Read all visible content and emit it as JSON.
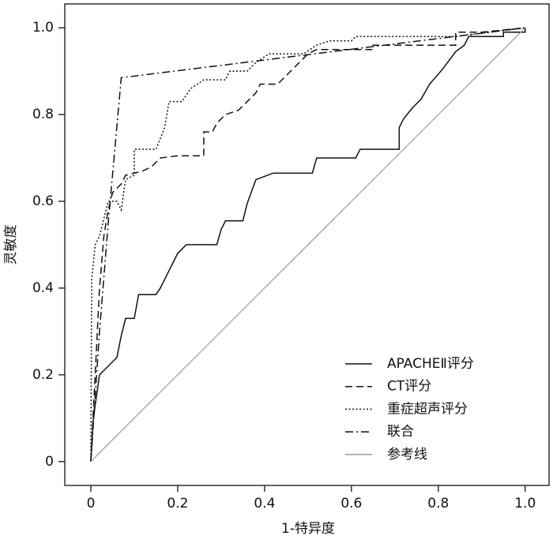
{
  "chart_data": {
    "type": "line",
    "xlabel": "1-特异度",
    "ylabel": "灵敏度",
    "xlim": [
      -0.06,
      1.055
    ],
    "ylim": [
      -0.055,
      1.055
    ],
    "xticks": [
      0,
      0.2,
      0.4,
      0.6,
      0.8,
      {
        "value": 1,
        "label": "1.0"
      }
    ],
    "yticks": [
      0,
      0.2,
      0.4,
      0.6,
      0.8,
      {
        "value": 1,
        "label": "1.0"
      }
    ],
    "legend": "lower right",
    "series": [
      {
        "name": "APACHEⅡ评分",
        "color": "#111111",
        "dash": "solid",
        "x": [
          0,
          0.005,
          0.01,
          0.02,
          0.04,
          0.06,
          0.07,
          0.08,
          0.1,
          0.11,
          0.15,
          0.16,
          0.17,
          0.18,
          0.19,
          0.2,
          0.22,
          0.29,
          0.3,
          0.31,
          0.35,
          0.36,
          0.38,
          0.42,
          0.51,
          0.52,
          0.61,
          0.62,
          0.71,
          0.71,
          0.72,
          0.74,
          0.76,
          0.78,
          0.81,
          0.84,
          0.86,
          0.87,
          0.95,
          0.95,
          1,
          1
        ],
        "values": [
          0,
          0.09,
          0.13,
          0.2,
          0.22,
          0.24,
          0.29,
          0.33,
          0.33,
          0.385,
          0.385,
          0.4,
          0.42,
          0.44,
          0.46,
          0.48,
          0.5,
          0.5,
          0.535,
          0.555,
          0.555,
          0.595,
          0.65,
          0.665,
          0.665,
          0.7,
          0.7,
          0.72,
          0.72,
          0.77,
          0.79,
          0.815,
          0.835,
          0.87,
          0.905,
          0.945,
          0.96,
          0.98,
          0.98,
          0.99,
          0.99,
          1
        ]
      },
      {
        "name": "CT评分",
        "color": "#111111",
        "dash": "dashed",
        "x": [
          0,
          0.005,
          0.01,
          0.02,
          0.03,
          0.04,
          0.05,
          0.07,
          0.08,
          0.12,
          0.14,
          0.16,
          0.2,
          0.26,
          0.26,
          0.28,
          0.29,
          0.31,
          0.34,
          0.36,
          0.38,
          0.39,
          0.43,
          0.45,
          0.48,
          0.5,
          0.52,
          0.65,
          0.65,
          0.84,
          0.84,
          0.9,
          1
        ],
        "values": [
          0,
          0.1,
          0.2,
          0.4,
          0.52,
          0.58,
          0.62,
          0.64,
          0.66,
          0.67,
          0.68,
          0.7,
          0.705,
          0.705,
          0.76,
          0.76,
          0.78,
          0.8,
          0.81,
          0.83,
          0.85,
          0.87,
          0.87,
          0.89,
          0.92,
          0.94,
          0.95,
          0.95,
          0.96,
          0.96,
          0.99,
          0.99,
          1
        ]
      },
      {
        "name": "重症超声评分",
        "color": "#111111",
        "dash": "dotted",
        "x": [
          0,
          0.002,
          0.01,
          0.02,
          0.03,
          0.04,
          0.06,
          0.07,
          0.08,
          0.1,
          0.1,
          0.15,
          0.17,
          0.18,
          0.21,
          0.23,
          0.26,
          0.31,
          0.32,
          0.36,
          0.38,
          0.41,
          0.49,
          0.52,
          0.55,
          0.6,
          0.61,
          0.84,
          0.92,
          1
        ],
        "values": [
          0,
          0.42,
          0.5,
          0.52,
          0.56,
          0.6,
          0.6,
          0.58,
          0.65,
          0.66,
          0.72,
          0.72,
          0.77,
          0.83,
          0.83,
          0.86,
          0.88,
          0.88,
          0.9,
          0.9,
          0.92,
          0.94,
          0.94,
          0.96,
          0.97,
          0.97,
          0.98,
          0.98,
          0.99,
          1
        ]
      },
      {
        "name": "联合",
        "color": "#111111",
        "dash": "dashdot",
        "x": [
          0,
          0.01,
          0.02,
          0.04,
          0.07,
          1
        ],
        "values": [
          0,
          0.15,
          0.3,
          0.55,
          0.885,
          1
        ]
      },
      {
        "name": "参考线",
        "color": "#9a9a9a",
        "dash": "solid",
        "x": [
          0,
          1
        ],
        "values": [
          0,
          1
        ]
      }
    ]
  }
}
